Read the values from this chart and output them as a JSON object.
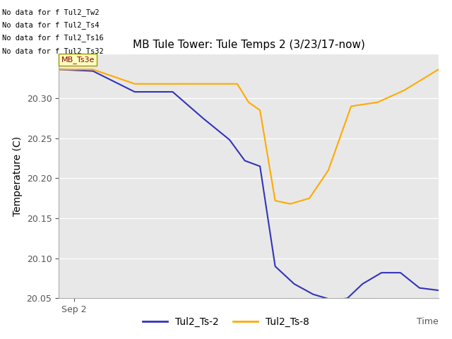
{
  "title": "MB Tule Tower: Tule Temps 2 (3/23/17-now)",
  "xlabel": "Time",
  "ylabel": "Temperature (C)",
  "ylim": [
    20.05,
    20.355
  ],
  "yticks": [
    20.05,
    20.1,
    20.15,
    20.2,
    20.25,
    20.3
  ],
  "no_data_messages": [
    "No data for f Tul2_Tw2",
    "No data for f Tul2_Ts4",
    "No data for f Tul2_Ts16",
    "No data for f Tul2_Ts32"
  ],
  "tooltip_text": "MB_Ts3e",
  "legend_entries": [
    "Tul2_Ts-2",
    "Tul2_Ts-8"
  ],
  "blue_color": "#3333bb",
  "orange_color": "#ffaa00",
  "bg_color": "#e8e8e8",
  "blue_x": [
    0.0,
    0.09,
    0.2,
    0.3,
    0.38,
    0.45,
    0.49,
    0.53,
    0.57,
    0.62,
    0.67,
    0.72,
    0.76,
    0.8,
    0.85,
    0.9,
    0.95,
    1.0
  ],
  "blue_y": [
    20.336,
    20.334,
    20.308,
    20.308,
    20.275,
    20.248,
    20.222,
    20.215,
    20.09,
    20.068,
    20.055,
    20.048,
    20.05,
    20.068,
    20.082,
    20.082,
    20.063,
    20.06
  ],
  "orange_x": [
    0.0,
    0.09,
    0.2,
    0.3,
    0.38,
    0.47,
    0.5,
    0.53,
    0.57,
    0.61,
    0.66,
    0.71,
    0.77,
    0.84,
    0.91,
    1.0
  ],
  "orange_y": [
    20.336,
    20.336,
    20.318,
    20.318,
    20.318,
    20.318,
    20.295,
    20.285,
    20.172,
    20.168,
    20.175,
    20.21,
    20.29,
    20.295,
    20.31,
    20.336
  ]
}
